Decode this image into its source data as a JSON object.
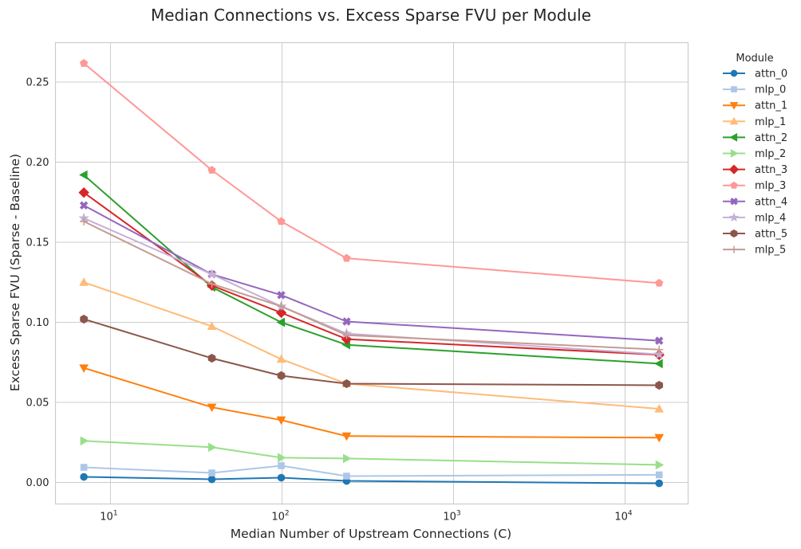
{
  "chart_data": {
    "type": "line",
    "title": "Median Connections vs. Excess Sparse FVU per Module",
    "xlabel": "Median Number of Upstream Connections (C)",
    "ylabel": "Excess Sparse FVU (Sparse - Baseline)",
    "xscale": "log",
    "xlim": [
      4.78,
      23300
    ],
    "ylim": [
      -0.0134,
      0.2746
    ],
    "grid": true,
    "x": [
      7,
      39,
      99,
      238,
      15800
    ],
    "xticks": [
      {
        "value": 10,
        "base": "10",
        "exp": "1"
      },
      {
        "value": 100,
        "base": "10",
        "exp": "2"
      },
      {
        "value": 1000,
        "base": "10",
        "exp": "3"
      },
      {
        "value": 10000,
        "base": "10",
        "exp": "4"
      }
    ],
    "yticks": [
      {
        "value": 0.0,
        "label": "0.00"
      },
      {
        "value": 0.05,
        "label": "0.05"
      },
      {
        "value": 0.1,
        "label": "0.10"
      },
      {
        "value": 0.15,
        "label": "0.15"
      },
      {
        "value": 0.2,
        "label": "0.20"
      },
      {
        "value": 0.25,
        "label": "0.25"
      }
    ],
    "legend": {
      "title": "Module",
      "placement": "outside-top-right"
    },
    "series": [
      {
        "name": "attn_0",
        "color": "#1f77b4",
        "marker": "circle",
        "values": [
          0.0035,
          0.002,
          0.003,
          0.001,
          -0.0005
        ]
      },
      {
        "name": "mlp_0",
        "color": "#aec7e8",
        "marker": "square",
        "values": [
          0.0095,
          0.006,
          0.0105,
          0.004,
          0.0048
        ]
      },
      {
        "name": "attn_1",
        "color": "#ff7f0e",
        "marker": "triangle-down",
        "values": [
          0.0715,
          0.047,
          0.039,
          0.029,
          0.028
        ]
      },
      {
        "name": "mlp_1",
        "color": "#ffbb78",
        "marker": "triangle-up",
        "values": [
          0.125,
          0.0975,
          0.077,
          0.0617,
          0.046
        ]
      },
      {
        "name": "attn_2",
        "color": "#2ca02c",
        "marker": "triangle-left",
        "values": [
          0.192,
          0.122,
          0.1,
          0.086,
          0.0742
        ]
      },
      {
        "name": "mlp_2",
        "color": "#98df8a",
        "marker": "triangle-right",
        "values": [
          0.026,
          0.022,
          0.0155,
          0.015,
          0.011
        ]
      },
      {
        "name": "attn_3",
        "color": "#d62728",
        "marker": "diamond",
        "values": [
          0.181,
          0.123,
          0.106,
          0.0895,
          0.0797
        ]
      },
      {
        "name": "mlp_3",
        "color": "#ff9896",
        "marker": "pentagon",
        "values": [
          0.2617,
          0.195,
          0.163,
          0.14,
          0.1245
        ]
      },
      {
        "name": "attn_4",
        "color": "#9467bd",
        "marker": "x-filled",
        "values": [
          0.173,
          0.13,
          0.117,
          0.1005,
          0.0885
        ]
      },
      {
        "name": "mlp_4",
        "color": "#c5b0d5",
        "marker": "star",
        "values": [
          0.165,
          0.13,
          0.11,
          0.093,
          0.08
        ]
      },
      {
        "name": "attn_5",
        "color": "#8c564b",
        "marker": "hexagon",
        "values": [
          0.102,
          0.0776,
          0.0667,
          0.0617,
          0.0607
        ]
      },
      {
        "name": "mlp_5",
        "color": "#c49c94",
        "marker": "plus",
        "values": [
          0.163,
          0.124,
          0.11,
          0.092,
          0.083
        ]
      }
    ]
  }
}
